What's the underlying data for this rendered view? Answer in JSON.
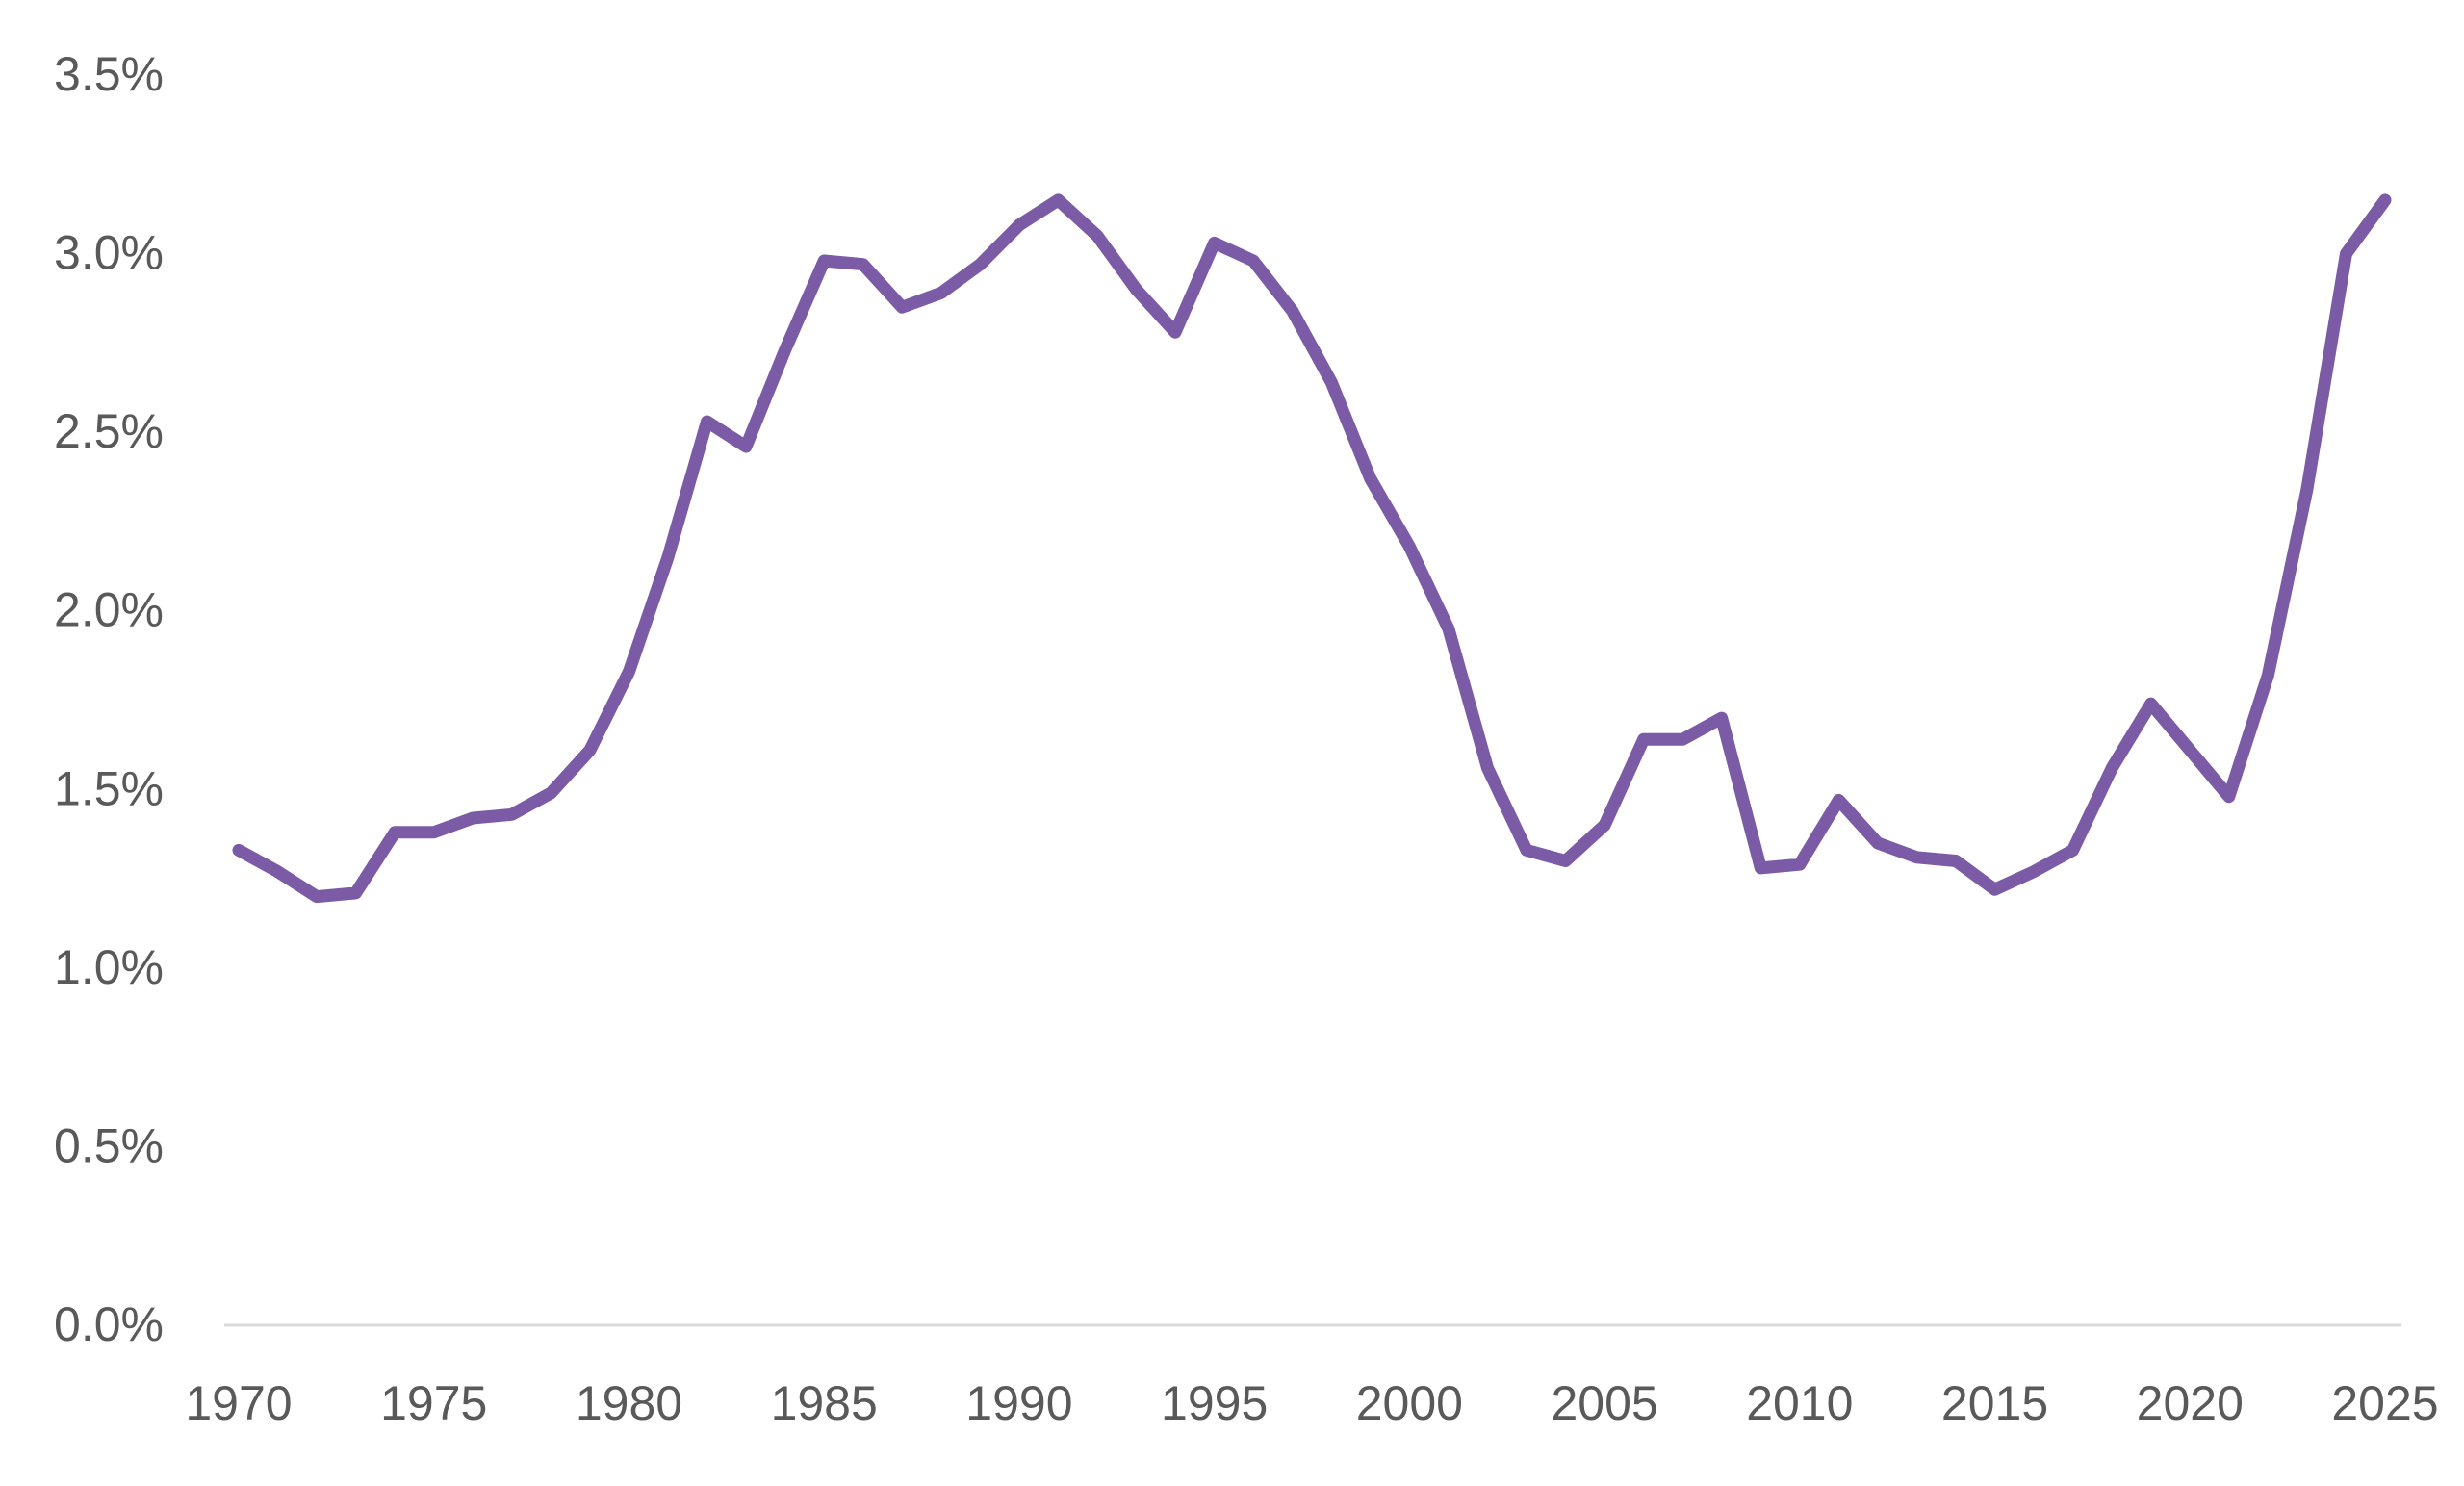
{
  "chart_data": {
    "type": "line",
    "title": "",
    "xlabel": "",
    "ylabel": "",
    "xlim": [
      1970,
      2025
    ],
    "ylim": [
      0,
      3.5
    ],
    "x_ticks": [
      1970,
      1975,
      1980,
      1985,
      1990,
      1995,
      2000,
      2005,
      2010,
      2015,
      2020,
      2025
    ],
    "x_tick_labels": [
      "1970",
      "1975",
      "1980",
      "1985",
      "1990",
      "1995",
      "2000",
      "2005",
      "2010",
      "2015",
      "2020",
      "2025"
    ],
    "y_ticks": [
      0,
      0.5,
      1.0,
      1.5,
      2.0,
      2.5,
      3.0,
      3.5
    ],
    "y_tick_labels": [
      "0.0%",
      "0.5%",
      "1.0%",
      "1.5%",
      "2.0%",
      "2.5%",
      "3.0%",
      "3.5%"
    ],
    "grid": false,
    "legend": "none",
    "colors": {
      "line": "#7B5AA6",
      "axis": "#D9D9D9",
      "tick_text": "#595959"
    },
    "series": [
      {
        "x": [
          1970,
          1971,
          1972,
          1973,
          1974,
          1975,
          1976,
          1977,
          1978,
          1979,
          1980,
          1981,
          1982,
          1983,
          1984,
          1985,
          1986,
          1987,
          1988,
          1989,
          1990,
          1991,
          1992,
          1993,
          1994,
          1995,
          1996,
          1997,
          1998,
          1999,
          2000,
          2001,
          2002,
          2003,
          2004,
          2005,
          2006,
          2007,
          2008,
          2009,
          2010,
          2011,
          2012,
          2013,
          2014,
          2015,
          2016,
          2017,
          2018,
          2019,
          2020,
          2021,
          2022,
          2023,
          2024,
          2025
        ],
        "values": [
          1.33,
          1.27,
          1.2,
          1.21,
          1.38,
          1.38,
          1.42,
          1.43,
          1.49,
          1.61,
          1.83,
          2.15,
          2.53,
          2.46,
          2.73,
          2.98,
          2.97,
          2.85,
          2.89,
          2.97,
          3.08,
          3.15,
          3.05,
          2.9,
          2.78,
          3.03,
          2.98,
          2.84,
          2.64,
          2.37,
          2.18,
          1.95,
          1.56,
          1.33,
          1.3,
          1.4,
          1.64,
          1.64,
          1.7,
          1.28,
          1.29,
          1.47,
          1.35,
          1.31,
          1.3,
          1.22,
          1.27,
          1.33,
          1.56,
          1.74,
          1.61,
          1.48,
          1.82,
          2.34,
          3.0,
          3.15
        ]
      }
    ]
  }
}
